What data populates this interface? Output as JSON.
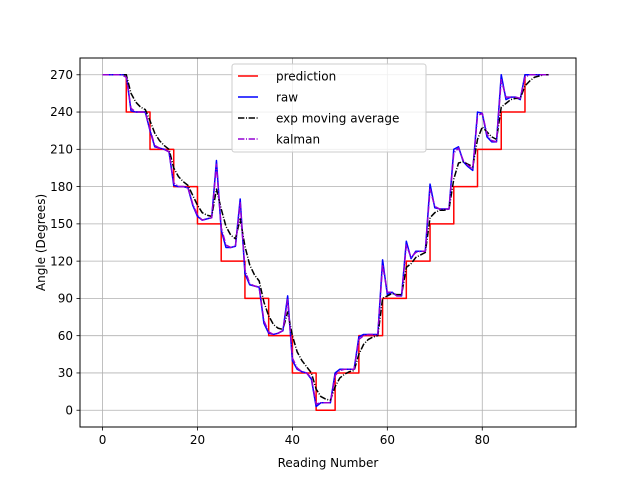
{
  "chart_data": {
    "type": "line",
    "title": "",
    "xlabel": "Reading Number",
    "ylabel": "Angle (Degrees)",
    "xlim": [
      -4.75,
      99.75
    ],
    "ylim": [
      -13.5,
      283.5
    ],
    "xticks": [
      0,
      20,
      40,
      60,
      80
    ],
    "yticks": [
      0,
      30,
      60,
      90,
      120,
      150,
      180,
      210,
      240,
      270
    ],
    "grid": true,
    "legend_position": "upper center",
    "series": [
      {
        "name": "prediction",
        "color": "#ff0000",
        "style": "steps",
        "x": [
          0,
          1,
          2,
          3,
          4,
          5,
          6,
          7,
          8,
          9,
          10,
          11,
          12,
          13,
          14,
          15,
          16,
          17,
          18,
          19,
          20,
          21,
          22,
          23,
          24,
          25,
          26,
          27,
          28,
          29,
          30,
          31,
          32,
          33,
          34,
          35,
          36,
          37,
          38,
          39,
          40,
          41,
          42,
          43,
          44,
          45,
          46,
          47,
          48,
          49,
          50,
          51,
          52,
          53,
          54,
          55,
          56,
          57,
          58,
          59,
          60,
          61,
          62,
          63,
          64,
          65,
          66,
          67,
          68,
          69,
          70,
          71,
          72,
          73,
          74,
          75,
          76,
          77,
          78,
          79,
          80,
          81,
          82,
          83,
          84,
          85,
          86,
          87,
          88,
          89,
          90,
          91,
          92,
          93,
          94
        ],
        "values": [
          270,
          270,
          270,
          270,
          270,
          240,
          240,
          240,
          240,
          240,
          210,
          210,
          210,
          210,
          210,
          180,
          180,
          180,
          180,
          180,
          150,
          150,
          150,
          150,
          150,
          120,
          120,
          120,
          120,
          120,
          90,
          90,
          90,
          90,
          90,
          60,
          60,
          60,
          60,
          60,
          30,
          30,
          30,
          30,
          30,
          0,
          0,
          0,
          0,
          30,
          30,
          30,
          30,
          30,
          60,
          60,
          60,
          60,
          60,
          90,
          90,
          90,
          90,
          90,
          120,
          120,
          120,
          120,
          120,
          150,
          150,
          150,
          150,
          150,
          180,
          180,
          180,
          180,
          180,
          210,
          210,
          210,
          210,
          210,
          240,
          240,
          240,
          240,
          240,
          270,
          270,
          270,
          270,
          270,
          270
        ]
      },
      {
        "name": "raw",
        "color": "#0000ff",
        "style": "solid",
        "x": [
          0,
          1,
          2,
          3,
          4,
          5,
          6,
          7,
          8,
          9,
          10,
          11,
          12,
          13,
          14,
          15,
          16,
          17,
          18,
          19,
          20,
          21,
          22,
          23,
          24,
          25,
          26,
          27,
          28,
          29,
          30,
          31,
          32,
          33,
          34,
          35,
          36,
          37,
          38,
          39,
          40,
          41,
          42,
          43,
          44,
          45,
          46,
          47,
          48,
          49,
          50,
          51,
          52,
          53,
          54,
          55,
          56,
          57,
          58,
          59,
          60,
          61,
          62,
          63,
          64,
          65,
          66,
          67,
          68,
          69,
          70,
          71,
          72,
          73,
          74,
          75,
          76,
          77,
          78,
          79,
          80,
          81,
          82,
          83,
          84,
          85,
          86,
          87,
          88,
          89,
          90,
          91,
          92,
          93,
          94
        ],
        "values": [
          270,
          270,
          270,
          270,
          270,
          270,
          241,
          240,
          240,
          240,
          225,
          212,
          211,
          210,
          208,
          181,
          180,
          180,
          179,
          165,
          156,
          153,
          154,
          155,
          201,
          145,
          131,
          131,
          132,
          170,
          110,
          101,
          100,
          99,
          70,
          62,
          61,
          62,
          64,
          92,
          40,
          33,
          31,
          30,
          25,
          3,
          6,
          6,
          6,
          30,
          33,
          33,
          33,
          33,
          59,
          61,
          61,
          61,
          61,
          121,
          93,
          95,
          92,
          92,
          136,
          122,
          128,
          128,
          128,
          182,
          163,
          162,
          162,
          162,
          210,
          212,
          200,
          196,
          193,
          240,
          239,
          220,
          216,
          216,
          270,
          250,
          252,
          252,
          250,
          270,
          270,
          270,
          270,
          270,
          270
        ]
      },
      {
        "name": "exp moving average",
        "color": "#000000",
        "style": "dashdot",
        "x": [
          0,
          1,
          2,
          3,
          4,
          5,
          6,
          7,
          8,
          9,
          10,
          11,
          12,
          13,
          14,
          15,
          16,
          17,
          18,
          19,
          20,
          21,
          22,
          23,
          24,
          25,
          26,
          27,
          28,
          29,
          30,
          31,
          32,
          33,
          34,
          35,
          36,
          37,
          38,
          39,
          40,
          41,
          42,
          43,
          44,
          45,
          46,
          47,
          48,
          49,
          50,
          51,
          52,
          53,
          54,
          55,
          56,
          57,
          58,
          59,
          60,
          61,
          62,
          63,
          64,
          65,
          66,
          67,
          68,
          69,
          70,
          71,
          72,
          73,
          74,
          75,
          76,
          77,
          78,
          79,
          80,
          81,
          82,
          83,
          84,
          85,
          86,
          87,
          88,
          89,
          90,
          91,
          92,
          93,
          94
        ],
        "values": [
          270,
          270,
          270,
          270,
          270,
          270,
          255,
          248,
          244,
          242,
          233,
          223,
          217,
          213,
          210,
          195,
          188,
          184,
          181,
          173,
          165,
          159,
          157,
          156,
          178,
          162,
          148,
          141,
          138,
          154,
          132,
          117,
          109,
          104,
          87,
          76,
          69,
          66,
          65,
          79,
          60,
          47,
          40,
          35,
          30,
          17,
          11,
          9,
          8,
          19,
          26,
          29,
          31,
          32,
          45,
          53,
          57,
          59,
          60,
          90,
          92,
          94,
          93,
          93,
          115,
          118,
          123,
          125,
          127,
          155,
          159,
          161,
          161,
          162,
          186,
          199,
          200,
          198,
          196,
          218,
          228,
          224,
          220,
          218,
          244,
          247,
          250,
          251,
          251,
          261,
          265,
          268,
          269,
          270,
          270
        ]
      },
      {
        "name": "kalman",
        "color": "#9400d3",
        "style": "dashdot",
        "x": [
          0,
          1,
          2,
          3,
          4,
          5,
          6,
          7,
          8,
          9,
          10,
          11,
          12,
          13,
          14,
          15,
          16,
          17,
          18,
          19,
          20,
          21,
          22,
          23,
          24,
          25,
          26,
          27,
          28,
          29,
          30,
          31,
          32,
          33,
          34,
          35,
          36,
          37,
          38,
          39,
          40,
          41,
          42,
          43,
          44,
          45,
          46,
          47,
          48,
          49,
          50,
          51,
          52,
          53,
          54,
          55,
          56,
          57,
          58,
          59,
          60,
          61,
          62,
          63,
          64,
          65,
          66,
          67,
          68,
          69,
          70,
          71,
          72,
          73,
          74,
          75,
          76,
          77,
          78,
          79,
          80,
          81,
          82,
          83,
          84,
          85,
          86,
          87,
          88,
          89,
          90,
          91,
          92,
          93,
          94
        ],
        "values": [
          270,
          270,
          270,
          270,
          270,
          268,
          243,
          240,
          240,
          240,
          226,
          213,
          211,
          210,
          208,
          183,
          180,
          180,
          179,
          166,
          157,
          153,
          154,
          155,
          198,
          147,
          133,
          131,
          132,
          167,
          113,
          102,
          100,
          99,
          72,
          63,
          61,
          62,
          64,
          89,
          42,
          34,
          31,
          30,
          26,
          5,
          6,
          6,
          6,
          28,
          32,
          33,
          33,
          33,
          57,
          60,
          61,
          61,
          61,
          117,
          95,
          95,
          92,
          92,
          133,
          123,
          127,
          128,
          128,
          178,
          164,
          162,
          162,
          162,
          207,
          211,
          201,
          197,
          194,
          237,
          239,
          222,
          217,
          216,
          266,
          252,
          252,
          252,
          251,
          268,
          270,
          270,
          270,
          270,
          270
        ]
      }
    ]
  }
}
